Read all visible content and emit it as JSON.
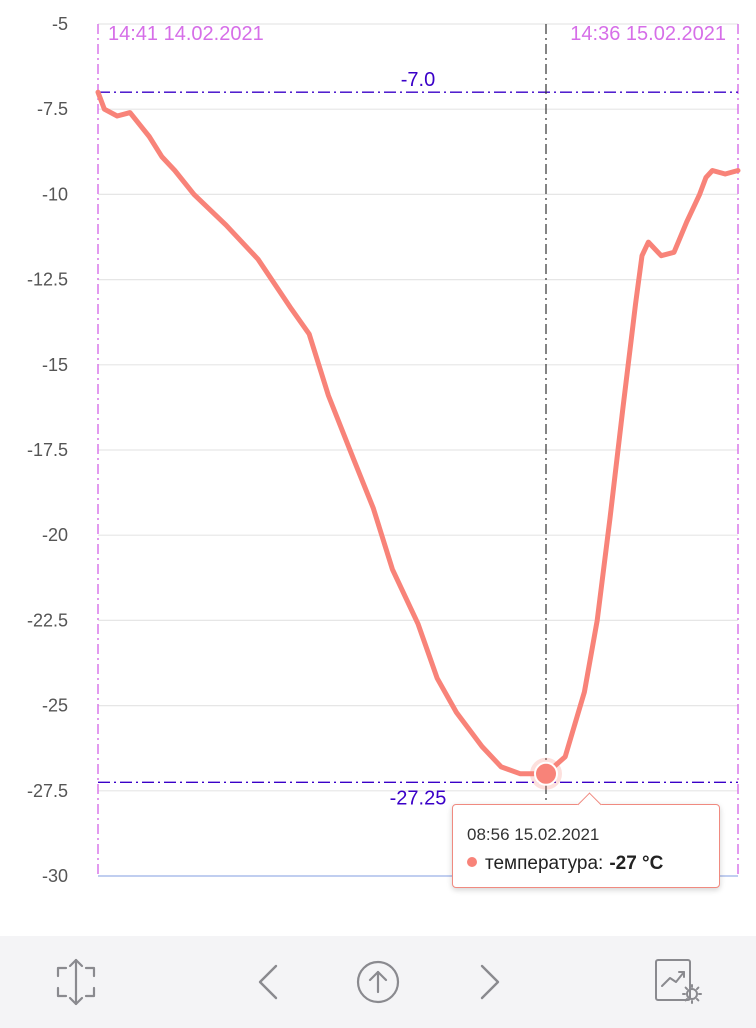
{
  "chart_data": {
    "type": "line",
    "ylim": [
      -30,
      -5
    ],
    "yticks": [
      "-5",
      "-7.5",
      "-10",
      "-12.5",
      "-15",
      "-17.5",
      "-20",
      "-22.5",
      "-25",
      "-27.5",
      "-30"
    ],
    "series": [
      {
        "color": "#f88379",
        "x_frac": [
          0,
          0.01,
          0.03,
          0.05,
          0.08,
          0.1,
          0.12,
          0.15,
          0.2,
          0.25,
          0.3,
          0.33,
          0.36,
          0.4,
          0.43,
          0.46,
          0.5,
          0.53,
          0.56,
          0.6,
          0.63,
          0.66,
          0.7,
          0.73,
          0.76,
          0.78,
          0.8,
          0.82,
          0.84,
          0.85,
          0.86,
          0.88,
          0.9,
          0.92,
          0.94,
          0.95,
          0.96,
          0.98,
          1
        ],
        "y": [
          -7.0,
          -7.5,
          -7.7,
          -7.6,
          -8.3,
          -8.9,
          -9.3,
          -10.0,
          -10.9,
          -11.9,
          -13.3,
          -14.1,
          -15.9,
          -17.8,
          -19.2,
          -21.0,
          -22.6,
          -24.2,
          -25.2,
          -26.2,
          -26.8,
          -27.0,
          -27.0,
          -26.5,
          -24.6,
          -22.5,
          -19.5,
          -16.3,
          -13.2,
          -11.8,
          -11.4,
          -11.8,
          -11.7,
          -10.8,
          -10.0,
          -9.5,
          -9.3,
          -9.4,
          -9.3
        ]
      }
    ],
    "reference_lines": [
      {
        "value": -7.0,
        "label": "-7.0",
        "color": "#3a00c8"
      },
      {
        "value": -27.25,
        "label": "-27.25",
        "color": "#3a00c8"
      }
    ],
    "time_markers": [
      {
        "label": "14:41 14.02.2021",
        "color": "#d66ee8"
      },
      {
        "label": "14:36 15.02.2021",
        "color": "#d66ee8"
      }
    ],
    "crosshair": {
      "x_frac": 0.7,
      "y": -27.0
    }
  },
  "tooltip": {
    "time": "08:56 15.02.2021",
    "series_label": "температура:",
    "value": "-27 °C",
    "color": "#f88379"
  },
  "toolbar": {
    "buttons": [
      "resize-icon",
      "chevron-left-icon",
      "arrow-up-circle-icon",
      "chevron-right-icon",
      "chart-settings-icon"
    ]
  }
}
